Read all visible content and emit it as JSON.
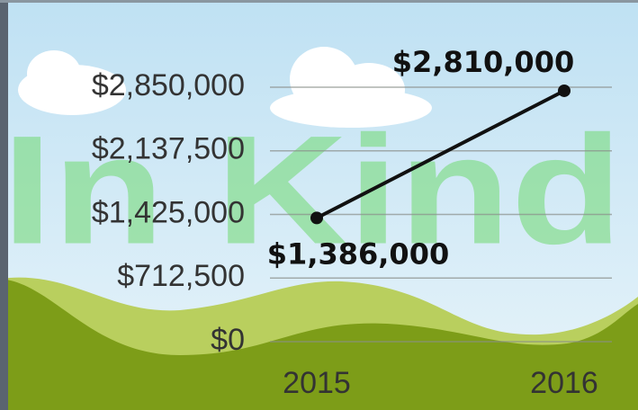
{
  "chart_data": {
    "type": "line",
    "watermark": "In Kind",
    "categories": [
      "2015",
      "2016"
    ],
    "series": [
      {
        "name": null,
        "color": "#111111",
        "values": [
          1386000,
          2810000
        ],
        "value_labels": [
          "$1,386,000",
          "$2,810,000"
        ]
      }
    ],
    "ylim": [
      0,
      2850000
    ],
    "yticks": [
      {
        "value": 0,
        "label": "$0"
      },
      {
        "value": 712500,
        "label": "$712,500"
      },
      {
        "value": 1425000,
        "label": "$1,425,000"
      },
      {
        "value": 2137500,
        "label": "$2,137,500"
      },
      {
        "value": 2850000,
        "label": "$2,850,000"
      }
    ],
    "grid": true
  }
}
